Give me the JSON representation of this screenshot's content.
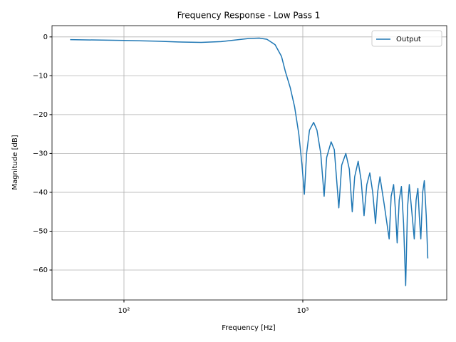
{
  "chart_data": {
    "type": "line",
    "title": "Frequency Response - Low Pass 1",
    "xlabel": "Frequency [Hz]",
    "ylabel": "Magnitude [dB]",
    "xscale": "log",
    "grid": true,
    "legend": "upper right",
    "xlim": [
      39.6,
      6380
    ],
    "ylim": [
      -67.7,
      2.9
    ],
    "xticks": [
      {
        "value": 100,
        "label": "10²"
      },
      {
        "value": 1000,
        "label": "10³"
      }
    ],
    "yticks": [
      {
        "value": -60,
        "label": "−60"
      },
      {
        "value": -50,
        "label": "−50"
      },
      {
        "value": -40,
        "label": "−40"
      },
      {
        "value": -30,
        "label": "−30"
      },
      {
        "value": -20,
        "label": "−20"
      },
      {
        "value": -10,
        "label": "−10"
      },
      0
    ],
    "x": [
      50,
      70,
      100,
      150,
      200,
      270,
      350,
      420,
      500,
      571,
      630,
      700,
      760,
      800,
      850,
      900,
      950,
      990,
      1020,
      1050,
      1090,
      1150,
      1200,
      1260,
      1316,
      1360,
      1440,
      1500,
      1590,
      1650,
      1740,
      1820,
      1890,
      1950,
      2040,
      2120,
      2200,
      2280,
      2370,
      2460,
      2550,
      2620,
      2700,
      2850,
      3040,
      3120,
      3220,
      3300,
      3370,
      3460,
      3560,
      3660,
      3760,
      3850,
      3940,
      4070,
      4200,
      4300,
      4400,
      4480,
      4570,
      4680,
      4780,
      4900,
      5000
    ],
    "series": [
      {
        "name": "Output",
        "color": "#1f77b4",
        "values": [
          -0.7,
          -0.8,
          -0.9,
          -1.1,
          -1.3,
          -1.4,
          -1.2,
          -0.8,
          -0.4,
          -0.3,
          -0.6,
          -2.0,
          -5,
          -9,
          -13,
          -18,
          -25,
          -33,
          -40.5,
          -30,
          -24,
          -22,
          -24,
          -30,
          -41,
          -31,
          -27,
          -29,
          -44,
          -33,
          -30,
          -34,
          -45,
          -36,
          -32,
          -37,
          -46,
          -38,
          -35,
          -40,
          -48,
          -40,
          -36,
          -43,
          -52,
          -41,
          -38,
          -45,
          -53,
          -42,
          -38.5,
          -48,
          -64,
          -44,
          -38,
          -45,
          -52,
          -42,
          -39,
          -46,
          -52,
          -40,
          -37,
          -46,
          -57
        ]
      }
    ]
  }
}
